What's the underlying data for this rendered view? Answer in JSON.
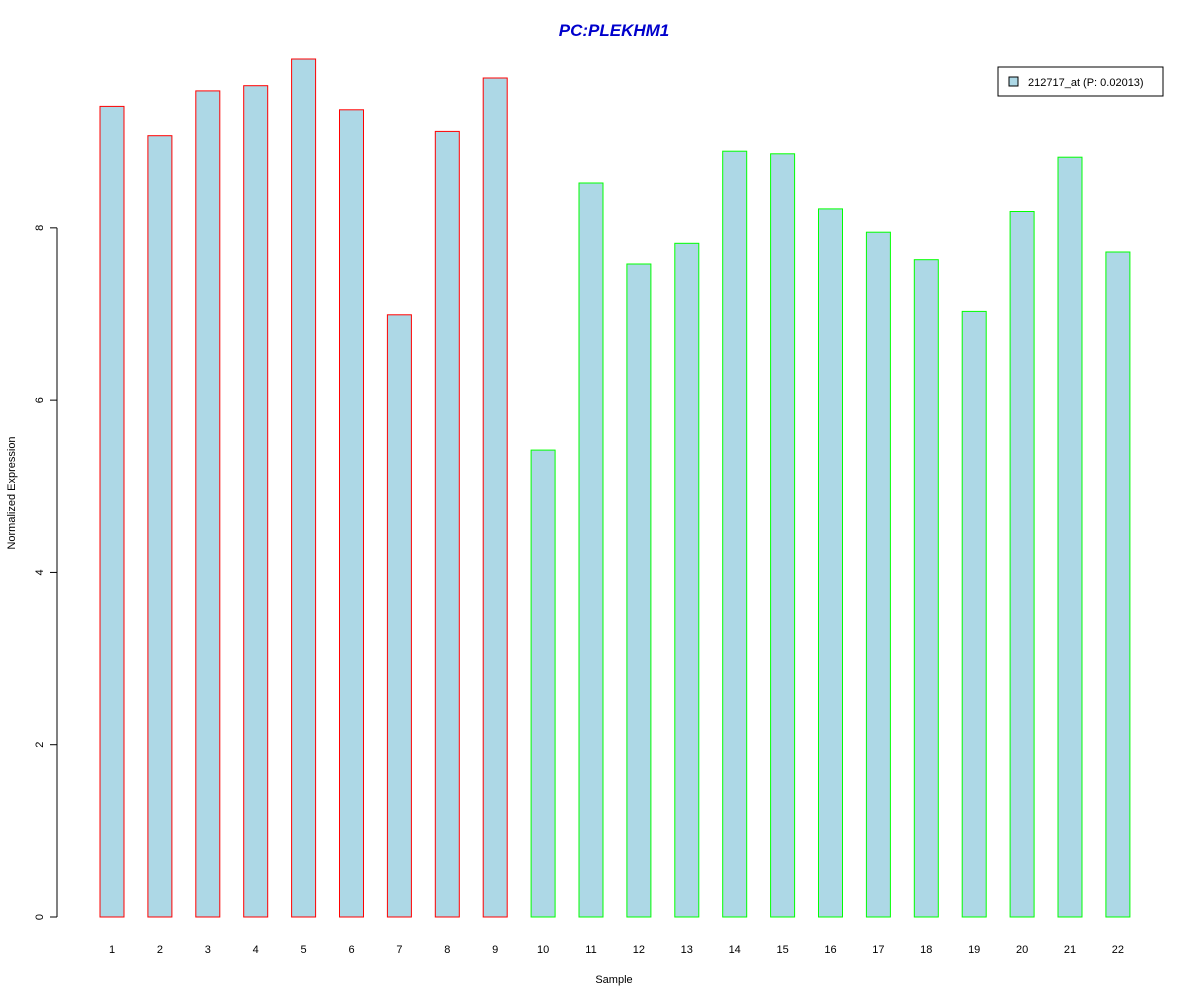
{
  "chart_data": {
    "type": "bar",
    "title": "PC:PLEKHM1",
    "xlabel": "Sample",
    "ylabel": "Normalized Expression",
    "categories": [
      "1",
      "2",
      "3",
      "4",
      "5",
      "6",
      "7",
      "8",
      "9",
      "10",
      "11",
      "12",
      "13",
      "14",
      "15",
      "16",
      "17",
      "18",
      "19",
      "20",
      "21",
      "22"
    ],
    "series": [
      {
        "name": "212717_at (P: 0.02013)",
        "values": [
          9.41,
          9.07,
          9.59,
          9.65,
          9.96,
          9.37,
          6.99,
          9.12,
          9.74,
          5.42,
          8.52,
          7.58,
          7.82,
          8.89,
          8.86,
          8.22,
          7.95,
          7.63,
          7.03,
          8.19,
          8.82,
          7.72
        ]
      }
    ],
    "groups": [
      1,
      1,
      1,
      1,
      1,
      1,
      1,
      1,
      1,
      2,
      2,
      2,
      2,
      2,
      2,
      2,
      2,
      2,
      2,
      2,
      2,
      2
    ],
    "yticks": [
      0,
      2,
      4,
      6,
      8
    ],
    "ylim": [
      0,
      9.96
    ],
    "grid": false,
    "legend_position": "top-right",
    "colors": {
      "fill": "#add8e6",
      "group1_border": "#ff0000",
      "group2_border": "#00ff00",
      "title": "#0000cc"
    }
  }
}
